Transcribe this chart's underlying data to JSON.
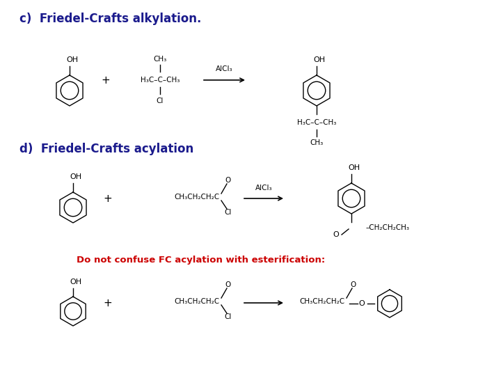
{
  "bg": "#ffffff",
  "title_c": "c)  Friedel-Crafts alkylation.",
  "title_d": "d)  Friedel-Crafts acylation",
  "title_color": "#1a1a8c",
  "title_fs": 12,
  "warn_text": "Do not confuse FC acylation with esterification:",
  "warn_color": "#cc0000",
  "warn_fs": 9.5,
  "blk": "#000000"
}
